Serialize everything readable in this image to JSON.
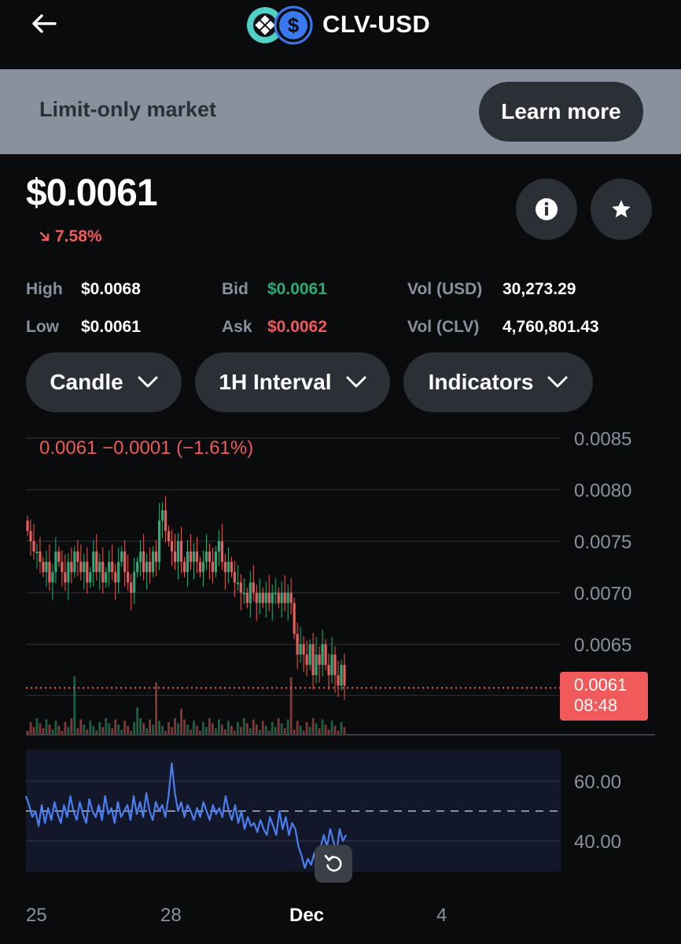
{
  "header": {
    "title": "CLV-USD",
    "back_icon": "arrow-left-icon",
    "coin_icons": [
      "clv-logo-icon",
      "usd-dollar-icon"
    ]
  },
  "banner": {
    "text": "Limit-only market",
    "button_label": "Learn more"
  },
  "price": {
    "value": "$0.0061",
    "change": "7.58%",
    "change_direction": "down",
    "change_color": "#f05a5a"
  },
  "stats": {
    "high_label": "High",
    "high_value": "$0.0068",
    "low_label": "Low",
    "low_value": "$0.0061",
    "bid_label": "Bid",
    "bid_value": "$0.0061",
    "ask_label": "Ask",
    "ask_value": "$0.0062",
    "vol_usd_label": "Vol (USD)",
    "vol_usd_value": "30,273.29",
    "vol_clv_label": "Vol (CLV)",
    "vol_clv_value": "4,760,801.43"
  },
  "controls": {
    "chart_type": "Candle",
    "interval": "1H Interval",
    "indicators": "Indicators"
  },
  "chart_data": [
    {
      "type": "candlestick",
      "overlay_text": "0.0061  −0.0001 (−1.61%)",
      "y_ticks": [
        "0.0085",
        "0.0080",
        "0.0075",
        "0.0070",
        "0.0065"
      ],
      "ylim": [
        0.0058,
        0.0087
      ],
      "last_price_label": "0.0061",
      "countdown_label": "08:48",
      "last_price": 0.0061,
      "up_color": "#27ad75",
      "down_color": "#f05a5a",
      "x_ticks": [
        "25",
        "28",
        "Dec",
        "4"
      ],
      "closes": [
        0.0076,
        0.0075,
        0.0074,
        0.0074,
        0.0073,
        0.0072,
        0.0073,
        0.0071,
        0.0072,
        0.0074,
        0.0073,
        0.0072,
        0.0071,
        0.0073,
        0.0072,
        0.0074,
        0.0073,
        0.0072,
        0.0073,
        0.0071,
        0.0072,
        0.0074,
        0.0072,
        0.0073,
        0.0071,
        0.0072,
        0.0073,
        0.0072,
        0.0071,
        0.0073,
        0.0074,
        0.0072,
        0.0071,
        0.007,
        0.0072,
        0.0073,
        0.0074,
        0.0072,
        0.0073,
        0.0072,
        0.0074,
        0.0073,
        0.0077,
        0.0078,
        0.0076,
        0.0075,
        0.0074,
        0.0073,
        0.0075,
        0.0073,
        0.0072,
        0.0074,
        0.0073,
        0.0074,
        0.0073,
        0.0072,
        0.0073,
        0.0074,
        0.0073,
        0.0072,
        0.0074,
        0.0075,
        0.0073,
        0.0072,
        0.0073,
        0.0072,
        0.0071,
        0.0071,
        0.007,
        0.007,
        0.0069,
        0.0071,
        0.007,
        0.0069,
        0.007,
        0.0069,
        0.007,
        0.0069,
        0.007,
        0.007,
        0.0069,
        0.007,
        0.0069,
        0.007,
        0.0069,
        0.0066,
        0.0064,
        0.0065,
        0.0064,
        0.0063,
        0.0065,
        0.0062,
        0.0064,
        0.0063,
        0.0065,
        0.0063,
        0.0062,
        0.0064,
        0.0062,
        0.0061,
        0.0063,
        0.0061
      ]
    },
    {
      "type": "line",
      "indicator": "RSI",
      "y_ticks": [
        "60.00",
        "40.00"
      ],
      "ylim": [
        30,
        70
      ],
      "reference_line": 50,
      "line_color": "#4c7ef0",
      "values": [
        55,
        52,
        48,
        50,
        45,
        52,
        46,
        51,
        47,
        53,
        49,
        46,
        52,
        48,
        55,
        50,
        47,
        53,
        49,
        46,
        54,
        50,
        48,
        52,
        47,
        55,
        49,
        51,
        46,
        53,
        48,
        50,
        52,
        47,
        55,
        49,
        53,
        48,
        56,
        50,
        47,
        53,
        50,
        52,
        48,
        55,
        66,
        56,
        50,
        53,
        48,
        52,
        50,
        47,
        51,
        48,
        53,
        50,
        47,
        52,
        49,
        51,
        48,
        55,
        50,
        47,
        52,
        46,
        50,
        44,
        48,
        45,
        46,
        43,
        47,
        44,
        42,
        48,
        45,
        42,
        50,
        44,
        48,
        42,
        46,
        44,
        38,
        35,
        31,
        34,
        32,
        36,
        30,
        38,
        42,
        38,
        44,
        40,
        36,
        44,
        40,
        42
      ]
    }
  ]
}
